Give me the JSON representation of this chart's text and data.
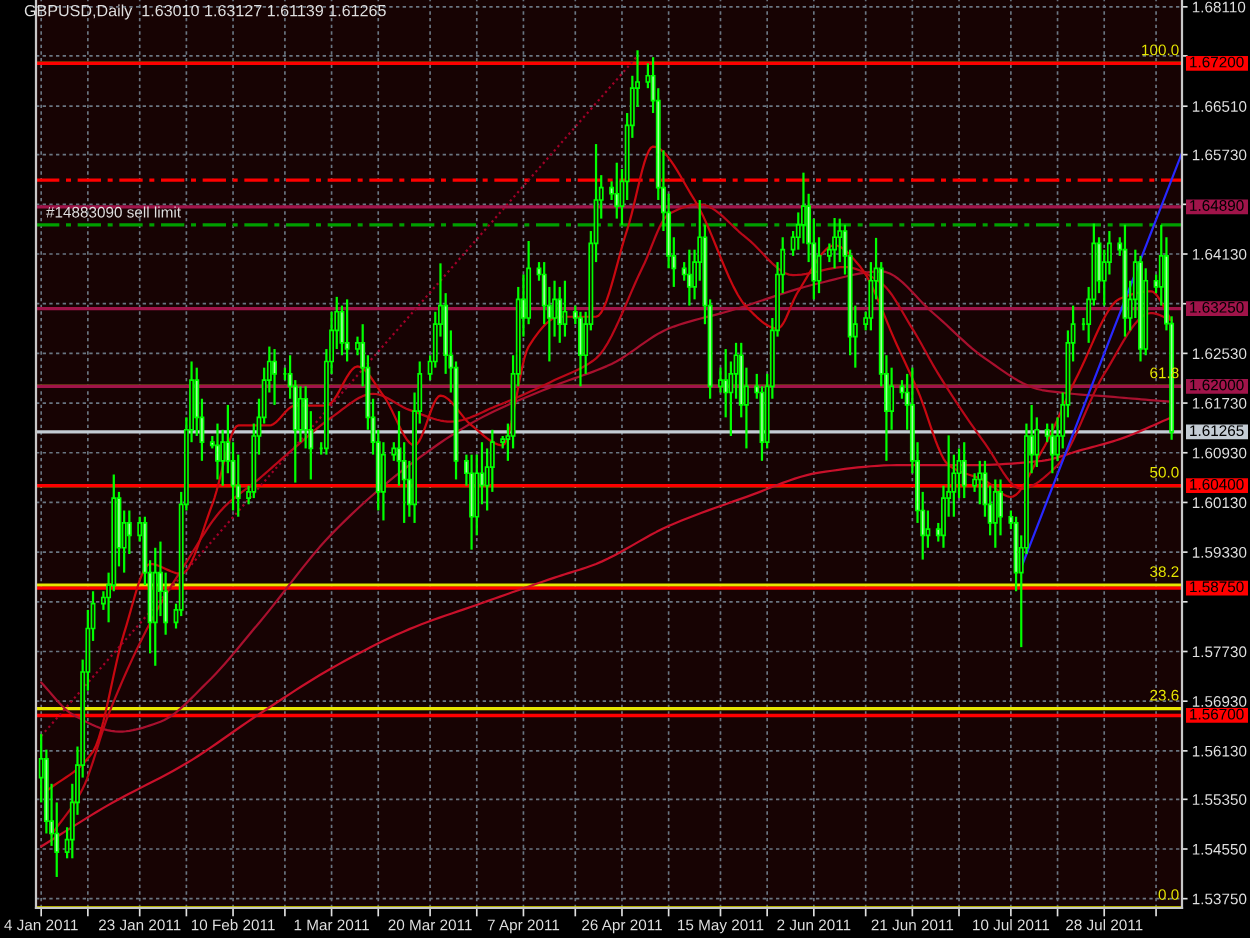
{
  "chart_data": {
    "type": "candlestick",
    "title": "GBPUSD,Daily  1.63010 1.63127 1.61139 1.61265",
    "color": "#00ff00",
    "x": [
      "2011-01-04",
      "2011-01-05",
      "2011-01-06",
      "2011-01-07",
      "2011-01-09",
      "2011-01-10",
      "2011-01-11",
      "2011-01-12",
      "2011-01-13",
      "2011-01-14",
      "2011-01-16",
      "2011-01-17",
      "2011-01-18",
      "2011-01-19",
      "2011-01-20",
      "2011-01-21",
      "2011-01-23",
      "2011-01-24",
      "2011-01-25",
      "2011-01-26",
      "2011-01-27",
      "2011-01-28",
      "2011-01-30",
      "2011-01-31",
      "2011-02-01",
      "2011-02-02",
      "2011-02-03",
      "2011-02-04",
      "2011-02-06",
      "2011-02-07",
      "2011-02-08",
      "2011-02-09",
      "2011-02-10",
      "2011-02-11",
      "2011-02-13",
      "2011-02-14",
      "2011-02-15",
      "2011-02-16",
      "2011-02-17",
      "2011-02-18",
      "2011-02-20",
      "2011-02-21",
      "2011-02-22",
      "2011-02-23",
      "2011-02-24",
      "2011-02-25",
      "2011-02-27",
      "2011-02-28",
      "2011-03-01",
      "2011-03-02",
      "2011-03-03",
      "2011-03-04",
      "2011-03-06",
      "2011-03-07",
      "2011-03-08",
      "2011-03-09",
      "2011-03-10",
      "2011-03-11",
      "2011-03-13",
      "2011-03-14",
      "2011-03-15",
      "2011-03-16",
      "2011-03-17",
      "2011-03-18",
      "2011-03-20",
      "2011-03-21",
      "2011-03-22",
      "2011-03-23",
      "2011-03-24",
      "2011-03-25",
      "2011-03-27",
      "2011-03-28",
      "2011-03-29",
      "2011-03-30",
      "2011-03-31",
      "2011-04-01",
      "2011-04-03",
      "2011-04-04",
      "2011-04-05",
      "2011-04-06",
      "2011-04-07",
      "2011-04-08",
      "2011-04-10",
      "2011-04-11",
      "2011-04-12",
      "2011-04-13",
      "2011-04-14",
      "2011-04-15",
      "2011-04-17",
      "2011-04-18",
      "2011-04-19",
      "2011-04-20",
      "2011-04-21",
      "2011-04-22",
      "2011-04-24",
      "2011-04-25",
      "2011-04-26",
      "2011-04-27",
      "2011-04-28",
      "2011-04-29",
      "2011-05-01",
      "2011-05-02",
      "2011-05-03",
      "2011-05-04",
      "2011-05-05",
      "2011-05-06",
      "2011-05-08",
      "2011-05-09",
      "2011-05-10",
      "2011-05-11",
      "2011-05-12",
      "2011-05-13",
      "2011-05-15",
      "2011-05-16",
      "2011-05-17",
      "2011-05-18",
      "2011-05-19",
      "2011-05-20",
      "2011-05-22",
      "2011-05-23",
      "2011-05-24",
      "2011-05-25",
      "2011-05-26",
      "2011-05-27",
      "2011-05-29",
      "2011-05-30",
      "2011-05-31",
      "2011-06-01",
      "2011-06-02",
      "2011-06-03",
      "2011-06-05",
      "2011-06-06",
      "2011-06-07",
      "2011-06-08",
      "2011-06-09",
      "2011-06-10",
      "2011-06-12",
      "2011-06-13",
      "2011-06-14",
      "2011-06-15",
      "2011-06-16",
      "2011-06-17",
      "2011-06-19",
      "2011-06-20",
      "2011-06-21",
      "2011-06-22",
      "2011-06-23",
      "2011-06-24",
      "2011-06-26",
      "2011-06-27",
      "2011-06-28",
      "2011-06-29",
      "2011-06-30",
      "2011-07-01",
      "2011-07-03",
      "2011-07-04",
      "2011-07-05",
      "2011-07-06",
      "2011-07-07",
      "2011-07-08",
      "2011-07-10",
      "2011-07-11",
      "2011-07-12",
      "2011-07-13",
      "2011-07-14",
      "2011-07-15",
      "2011-07-17",
      "2011-07-18",
      "2011-07-19",
      "2011-07-20",
      "2011-07-21",
      "2011-07-22",
      "2011-07-24",
      "2011-07-25",
      "2011-07-26",
      "2011-07-27",
      "2011-07-28",
      "2011-07-29",
      "2011-07-31",
      "2011-08-01",
      "2011-08-02",
      "2011-08-03",
      "2011-08-04",
      "2011-08-05",
      "2011-08-07",
      "2011-08-08",
      "2011-08-09",
      "2011-08-10"
    ],
    "ohlc": [
      [
        1.557,
        1.564,
        1.553,
        1.56
      ],
      [
        1.56,
        1.5615,
        1.548,
        1.55
      ],
      [
        1.55,
        1.556,
        1.546,
        1.548
      ],
      [
        1.548,
        1.553,
        1.541,
        1.545
      ],
      [
        1.545,
        1.549,
        1.544,
        1.547
      ],
      [
        1.547,
        1.556,
        1.544,
        1.553
      ],
      [
        1.553,
        1.562,
        1.551,
        1.559
      ],
      [
        1.559,
        1.576,
        1.557,
        1.574
      ],
      [
        1.574,
        1.584,
        1.571,
        1.581
      ],
      [
        1.581,
        1.587,
        1.579,
        1.585
      ],
      [
        1.585,
        1.587,
        1.584,
        1.586
      ],
      [
        1.586,
        1.59,
        1.582,
        1.588
      ],
      [
        1.588,
        1.6058,
        1.587,
        1.602
      ],
      [
        1.602,
        1.603,
        1.591,
        1.594
      ],
      [
        1.594,
        1.6,
        1.59,
        1.598
      ],
      [
        1.598,
        1.6,
        1.593,
        1.596
      ],
      [
        1.596,
        1.599,
        1.595,
        1.598
      ],
      [
        1.598,
        1.599,
        1.588,
        1.59
      ],
      [
        1.59,
        1.592,
        1.577,
        1.582
      ],
      [
        1.582,
        1.594,
        1.575,
        1.59
      ],
      [
        1.59,
        1.595,
        1.583,
        1.587
      ],
      [
        1.587,
        1.59,
        1.58,
        1.582
      ],
      [
        1.582,
        1.585,
        1.581,
        1.584
      ],
      [
        1.584,
        1.603,
        1.583,
        1.601
      ],
      [
        1.601,
        1.615,
        1.6,
        1.613
      ],
      [
        1.613,
        1.624,
        1.611,
        1.621
      ],
      [
        1.621,
        1.623,
        1.612,
        1.615
      ],
      [
        1.615,
        1.618,
        1.608,
        1.611
      ],
      [
        1.611,
        1.612,
        1.61,
        1.6105
      ],
      [
        1.6105,
        1.614,
        1.605,
        1.608
      ],
      [
        1.608,
        1.613,
        1.604,
        1.611
      ],
      [
        1.611,
        1.617,
        1.606,
        1.608
      ],
      [
        1.608,
        1.611,
        1.6,
        1.604
      ],
      [
        1.604,
        1.609,
        1.599,
        1.602
      ],
      [
        1.602,
        1.604,
        1.601,
        1.603
      ],
      [
        1.603,
        1.614,
        1.602,
        1.612
      ],
      [
        1.612,
        1.618,
        1.609,
        1.615
      ],
      [
        1.615,
        1.623,
        1.614,
        1.621
      ],
      [
        1.621,
        1.6264,
        1.619,
        1.624
      ],
      [
        1.624,
        1.626,
        1.617,
        1.622
      ],
      [
        1.622,
        1.623,
        1.621,
        1.622
      ],
      [
        1.622,
        1.625,
        1.618,
        1.62
      ],
      [
        1.62,
        1.621,
        1.6045,
        1.613
      ],
      [
        1.613,
        1.62,
        1.611,
        1.618
      ],
      [
        1.618,
        1.62,
        1.61,
        1.613
      ],
      [
        1.613,
        1.616,
        1.605,
        1.61
      ],
      [
        1.61,
        1.611,
        1.609,
        1.61
      ],
      [
        1.61,
        1.626,
        1.609,
        1.624
      ],
      [
        1.624,
        1.632,
        1.622,
        1.629
      ],
      [
        1.629,
        1.6344,
        1.626,
        1.632
      ],
      [
        1.632,
        1.633,
        1.625,
        1.627
      ],
      [
        1.627,
        1.634,
        1.624,
        1.626
      ],
      [
        1.626,
        1.628,
        1.625,
        1.627
      ],
      [
        1.627,
        1.63,
        1.62,
        1.623
      ],
      [
        1.623,
        1.625,
        1.613,
        1.615
      ],
      [
        1.615,
        1.618,
        1.609,
        1.611
      ],
      [
        1.611,
        1.613,
        1.6,
        1.603
      ],
      [
        1.603,
        1.611,
        1.5984,
        1.609
      ],
      [
        1.609,
        1.611,
        1.608,
        1.61
      ],
      [
        1.61,
        1.616,
        1.604,
        1.608
      ],
      [
        1.608,
        1.611,
        1.598,
        1.605
      ],
      [
        1.605,
        1.608,
        1.599,
        1.601
      ],
      [
        1.601,
        1.619,
        1.598,
        1.616
      ],
      [
        1.616,
        1.624,
        1.614,
        1.622
      ],
      [
        1.622,
        1.625,
        1.621,
        1.624
      ],
      [
        1.624,
        1.632,
        1.623,
        1.63
      ],
      [
        1.63,
        1.6398,
        1.628,
        1.633
      ],
      [
        1.633,
        1.635,
        1.622,
        1.625
      ],
      [
        1.625,
        1.629,
        1.619,
        1.623
      ],
      [
        1.623,
        1.624,
        1.605,
        1.608
      ],
      [
        1.608,
        1.609,
        1.604,
        1.606
      ],
      [
        1.606,
        1.609,
        1.5937,
        1.599
      ],
      [
        1.599,
        1.609,
        1.596,
        1.606
      ],
      [
        1.606,
        1.611,
        1.601,
        1.604
      ],
      [
        1.604,
        1.61,
        1.6,
        1.607
      ],
      [
        1.607,
        1.613,
        1.603,
        1.611
      ],
      [
        1.611,
        1.612,
        1.61,
        1.6115
      ],
      [
        1.6115,
        1.614,
        1.608,
        1.612
      ],
      [
        1.612,
        1.625,
        1.61,
        1.622
      ],
      [
        1.622,
        1.636,
        1.62,
        1.634
      ],
      [
        1.634,
        1.638,
        1.628,
        1.631
      ],
      [
        1.631,
        1.6434,
        1.63,
        1.639
      ],
      [
        1.639,
        1.64,
        1.637,
        1.638
      ],
      [
        1.638,
        1.64,
        1.63,
        1.633
      ],
      [
        1.633,
        1.636,
        1.624,
        1.631
      ],
      [
        1.631,
        1.637,
        1.628,
        1.634
      ],
      [
        1.634,
        1.636,
        1.627,
        1.63
      ],
      [
        1.63,
        1.637,
        1.628,
        1.632
      ],
      [
        1.632,
        1.633,
        1.63,
        1.631
      ],
      [
        1.631,
        1.632,
        1.62,
        1.625
      ],
      [
        1.625,
        1.632,
        1.622,
        1.63
      ],
      [
        1.63,
        1.645,
        1.629,
        1.643
      ],
      [
        1.643,
        1.659,
        1.64,
        1.65
      ],
      [
        1.65,
        1.654,
        1.647,
        1.652
      ],
      [
        1.652,
        1.653,
        1.65,
        1.651
      ],
      [
        1.651,
        1.656,
        1.647,
        1.649
      ],
      [
        1.649,
        1.655,
        1.646,
        1.653
      ],
      [
        1.653,
        1.664,
        1.65,
        1.662
      ],
      [
        1.662,
        1.67,
        1.66,
        1.668
      ],
      [
        1.668,
        1.6741,
        1.665,
        1.669
      ],
      [
        1.669,
        1.672,
        1.668,
        1.67
      ],
      [
        1.67,
        1.673,
        1.664,
        1.666
      ],
      [
        1.666,
        1.668,
        1.65,
        1.652
      ],
      [
        1.652,
        1.658,
        1.645,
        1.648
      ],
      [
        1.648,
        1.651,
        1.639,
        1.641
      ],
      [
        1.641,
        1.644,
        1.636,
        1.639
      ],
      [
        1.639,
        1.64,
        1.637,
        1.638
      ],
      [
        1.638,
        1.642,
        1.633,
        1.636
      ],
      [
        1.636,
        1.642,
        1.634,
        1.64
      ],
      [
        1.64,
        1.65,
        1.637,
        1.644
      ],
      [
        1.644,
        1.646,
        1.63,
        1.633
      ],
      [
        1.633,
        1.634,
        1.618,
        1.62
      ],
      [
        1.62,
        1.623,
        1.619,
        1.621
      ],
      [
        1.621,
        1.626,
        1.615,
        1.619
      ],
      [
        1.619,
        1.624,
        1.612,
        1.622
      ],
      [
        1.622,
        1.627,
        1.618,
        1.625
      ],
      [
        1.625,
        1.627,
        1.615,
        1.617
      ],
      [
        1.617,
        1.623,
        1.61,
        1.62
      ],
      [
        1.62,
        1.622,
        1.618,
        1.619
      ],
      [
        1.619,
        1.62,
        1.608,
        1.611
      ],
      [
        1.611,
        1.622,
        1.61,
        1.62
      ],
      [
        1.62,
        1.631,
        1.618,
        1.629
      ],
      [
        1.629,
        1.64,
        1.628,
        1.638
      ],
      [
        1.638,
        1.644,
        1.635,
        1.642
      ],
      [
        1.642,
        1.645,
        1.641,
        1.644
      ],
      [
        1.644,
        1.648,
        1.642,
        1.646
      ],
      [
        1.646,
        1.6544,
        1.643,
        1.649
      ],
      [
        1.649,
        1.651,
        1.64,
        1.643
      ],
      [
        1.643,
        1.647,
        1.634,
        1.637
      ],
      [
        1.637,
        1.644,
        1.635,
        1.641
      ],
      [
        1.641,
        1.643,
        1.64,
        1.642
      ],
      [
        1.642,
        1.6471,
        1.639,
        1.644
      ],
      [
        1.644,
        1.647,
        1.64,
        1.645
      ],
      [
        1.645,
        1.646,
        1.638,
        1.641
      ],
      [
        1.641,
        1.642,
        1.625,
        1.628
      ],
      [
        1.628,
        1.633,
        1.623,
        1.63
      ],
      [
        1.63,
        1.632,
        1.629,
        1.631
      ],
      [
        1.631,
        1.64,
        1.629,
        1.637
      ],
      [
        1.637,
        1.6439,
        1.634,
        1.639
      ],
      [
        1.639,
        1.64,
        1.62,
        1.622
      ],
      [
        1.622,
        1.625,
        1.608,
        1.616
      ],
      [
        1.616,
        1.623,
        1.613,
        1.62
      ],
      [
        1.62,
        1.621,
        1.618,
        1.619
      ],
      [
        1.619,
        1.622,
        1.613,
        1.617
      ],
      [
        1.617,
        1.623,
        1.606,
        1.608
      ],
      [
        1.608,
        1.611,
        1.598,
        1.6
      ],
      [
        1.6,
        1.603,
        1.5921,
        1.596
      ],
      [
        1.596,
        1.6,
        1.594,
        1.597
      ],
      [
        1.597,
        1.598,
        1.595,
        1.596
      ],
      [
        1.596,
        1.604,
        1.594,
        1.602
      ],
      [
        1.602,
        1.6121,
        1.599,
        1.603
      ],
      [
        1.603,
        1.609,
        1.599,
        1.606
      ],
      [
        1.606,
        1.61,
        1.602,
        1.608
      ],
      [
        1.608,
        1.611,
        1.602,
        1.604
      ],
      [
        1.604,
        1.606,
        1.603,
        1.605
      ],
      [
        1.605,
        1.608,
        1.601,
        1.606
      ],
      [
        1.606,
        1.608,
        1.599,
        1.601
      ],
      [
        1.601,
        1.604,
        1.596,
        1.598
      ],
      [
        1.598,
        1.605,
        1.594,
        1.603
      ],
      [
        1.603,
        1.605,
        1.596,
        1.599
      ],
      [
        1.599,
        1.6,
        1.597,
        1.598
      ],
      [
        1.598,
        1.599,
        1.587,
        1.59
      ],
      [
        1.59,
        1.596,
        1.578,
        1.594
      ],
      [
        1.594,
        1.614,
        1.593,
        1.612
      ],
      [
        1.612,
        1.617,
        1.606,
        1.609
      ],
      [
        1.609,
        1.615,
        1.607,
        1.613
      ],
      [
        1.613,
        1.614,
        1.611,
        1.612
      ],
      [
        1.612,
        1.614,
        1.606,
        1.609
      ],
      [
        1.609,
        1.615,
        1.608,
        1.612
      ],
      [
        1.612,
        1.619,
        1.61,
        1.617
      ],
      [
        1.617,
        1.629,
        1.615,
        1.627
      ],
      [
        1.627,
        1.633,
        1.624,
        1.63
      ],
      [
        1.63,
        1.631,
        1.629,
        1.63
      ],
      [
        1.63,
        1.636,
        1.627,
        1.634
      ],
      [
        1.634,
        1.6462,
        1.633,
        1.643
      ],
      [
        1.643,
        1.644,
        1.635,
        1.637
      ],
      [
        1.637,
        1.642,
        1.633,
        1.64
      ],
      [
        1.64,
        1.645,
        1.638,
        1.643
      ],
      [
        1.643,
        1.644,
        1.641,
        1.642
      ],
      [
        1.642,
        1.646,
        1.628,
        1.631
      ],
      [
        1.631,
        1.637,
        1.629,
        1.634
      ],
      [
        1.634,
        1.642,
        1.631,
        1.64
      ],
      [
        1.64,
        1.641,
        1.624,
        1.626
      ],
      [
        1.626,
        1.639,
        1.625,
        1.637
      ],
      [
        1.637,
        1.638,
        1.635,
        1.636
      ],
      [
        1.636,
        1.646,
        1.633,
        1.641
      ],
      [
        1.641,
        1.644,
        1.629,
        1.6301
      ],
      [
        1.6301,
        1.63127,
        1.61139,
        1.61265
      ]
    ],
    "series": [
      {
        "type": "line",
        "color": "#c8102a",
        "x": [
          "2011-01-04",
          "2011-01-17",
          "2011-02-01",
          "2011-02-15",
          "2011-03-01",
          "2011-03-16",
          "2011-03-30",
          "2011-04-13",
          "2011-04-21",
          "2011-05-05",
          "2011-05-20",
          "2011-06-03",
          "2011-06-18",
          "2011-07-02",
          "2011-07-16",
          "2011-07-23",
          "2011-07-31",
          "2011-08-10"
        ],
        "values": [
          1.5459,
          1.5526,
          1.5593,
          1.5672,
          1.5746,
          1.5809,
          1.5851,
          1.5892,
          1.5914,
          1.5975,
          1.6022,
          1.6061,
          1.6073,
          1.6073,
          1.608,
          1.6096,
          1.6115,
          1.615
        ]
      },
      {
        "type": "line",
        "color": "#a8102e",
        "x": [
          "2011-01-04",
          "2011-01-10",
          "2011-01-19",
          "2011-01-27",
          "2011-02-05",
          "2011-02-15",
          "2011-03-01",
          "2011-03-16",
          "2011-03-30",
          "2011-04-13",
          "2011-04-24",
          "2011-05-05",
          "2011-05-17",
          "2011-06-03",
          "2011-06-15",
          "2011-06-25",
          "2011-07-05",
          "2011-07-16",
          "2011-07-31",
          "2011-08-10"
        ],
        "values": [
          1.5723,
          1.5672,
          1.5644,
          1.566,
          1.5723,
          1.5819,
          1.5962,
          1.6073,
          1.615,
          1.6201,
          1.6236,
          1.6293,
          1.6322,
          1.6366,
          1.6385,
          1.6318,
          1.6245,
          1.6194,
          1.6182,
          1.6175
        ]
      },
      {
        "type": "line",
        "color": "#b80818",
        "x": [
          "2011-01-06",
          "2011-01-12",
          "2011-01-17",
          "2011-01-25",
          "2011-02-01",
          "2011-02-08",
          "2011-02-15",
          "2011-02-22",
          "2011-03-01",
          "2011-03-09",
          "2011-03-16",
          "2011-03-24",
          "2011-04-02",
          "2011-04-13",
          "2011-04-21",
          "2011-04-30",
          "2011-05-05",
          "2011-05-11",
          "2011-05-20",
          "2011-05-29",
          "2011-06-08",
          "2011-06-15",
          "2011-06-21",
          "2011-06-26",
          "2011-07-05",
          "2011-07-12",
          "2011-07-19",
          "2011-07-28",
          "2011-08-06",
          "2011-08-10"
        ],
        "values": [
          1.5478,
          1.5552,
          1.5672,
          1.5819,
          1.5917,
          1.6003,
          1.6051,
          1.6102,
          1.615,
          1.6188,
          1.6162,
          1.6143,
          1.6169,
          1.621,
          1.6245,
          1.6392,
          1.6477,
          1.6493,
          1.6439,
          1.6379,
          1.6392,
          1.6366,
          1.6293,
          1.622,
          1.6108,
          1.6035,
          1.6073,
          1.622,
          1.6318,
          1.6306
        ]
      },
      {
        "type": "line",
        "color": "#c80810",
        "x": [
          "2011-01-05",
          "2011-01-14",
          "2011-01-20",
          "2011-01-25",
          "2011-01-31",
          "2011-02-06",
          "2011-02-11",
          "2011-02-17",
          "2011-02-22",
          "2011-02-28",
          "2011-03-06",
          "2011-03-11",
          "2011-03-17",
          "2011-03-22",
          "2011-03-28",
          "2011-04-03",
          "2011-04-08",
          "2011-04-14",
          "2011-04-21",
          "2011-04-27",
          "2011-05-02",
          "2011-05-10",
          "2011-05-20",
          "2011-05-26",
          "2011-05-30",
          "2011-06-06",
          "2011-06-11",
          "2011-06-18",
          "2011-06-22",
          "2011-06-28",
          "2011-07-05",
          "2011-07-10",
          "2011-07-16",
          "2011-07-23",
          "2011-07-31",
          "2011-08-06",
          "2011-08-10"
        ],
        "values": [
          1.5548,
          1.5612,
          1.5803,
          1.5914,
          1.5898,
          1.601,
          1.6137,
          1.6137,
          1.6169,
          1.6169,
          1.6232,
          1.6185,
          1.6105,
          1.6185,
          1.6137,
          1.6105,
          1.6264,
          1.6312,
          1.6312,
          1.6452,
          1.6586,
          1.65,
          1.6328,
          1.6293,
          1.6353,
          1.6427,
          1.6392,
          1.6267,
          1.6194,
          1.6073,
          1.6048,
          1.6022,
          1.6096,
          1.622,
          1.6341,
          1.6353,
          1.6306
        ]
      },
      {
        "type": "line",
        "color": "#a00028",
        "line_style": "dotted",
        "x": [
          "2011-01-04",
          "2011-04-29"
        ],
        "values": [
          1.5637,
          1.6732
        ]
      },
      {
        "type": "line",
        "color": "#2828ff",
        "x": [
          "2011-07-12",
          "2011-08-12"
        ],
        "values": [
          1.5908,
          1.6576
        ]
      }
    ],
    "xlim": [
      "2011-01-03",
      "2011-08-12"
    ],
    "xticks": [
      {
        "value": "2011-01-04",
        "label": "4 Jan 2011"
      },
      {
        "value": "2011-01-13",
        "label": null
      },
      {
        "value": "2011-01-23",
        "label": "23 Jan 2011"
      },
      {
        "value": "2011-02-01",
        "label": null
      },
      {
        "value": "2011-02-10",
        "label": "10 Feb 2011"
      },
      {
        "value": "2011-02-20",
        "label": null
      },
      {
        "value": "2011-03-01",
        "label": "1 Mar 2011"
      },
      {
        "value": "2011-03-10",
        "label": null
      },
      {
        "value": "2011-03-20",
        "label": "20 Mar 2011"
      },
      {
        "value": "2011-03-29",
        "label": null
      },
      {
        "value": "2011-04-07",
        "label": "7 Apr 2011"
      },
      {
        "value": "2011-04-17",
        "label": null
      },
      {
        "value": "2011-04-26",
        "label": "26 Apr 2011"
      },
      {
        "value": "2011-05-05",
        "label": null
      },
      {
        "value": "2011-05-15",
        "label": "15 May 2011"
      },
      {
        "value": "2011-05-24",
        "label": null
      },
      {
        "value": "2011-06-02",
        "label": "2 Jun 2011"
      },
      {
        "value": "2011-06-12",
        "label": null
      },
      {
        "value": "2011-06-21",
        "label": "21 Jun 2011"
      },
      {
        "value": "2011-06-30",
        "label": null
      },
      {
        "value": "2011-07-10",
        "label": "10 Jul 2011"
      },
      {
        "value": "2011-07-19",
        "label": null
      },
      {
        "value": "2011-07-28",
        "label": "28 Jul 2011"
      },
      {
        "value": "2011-08-07",
        "label": null
      }
    ],
    "ylim": [
      1.536,
      1.6822
    ],
    "yticks": [
      {
        "value": 1.6811,
        "label": "1.68110"
      },
      {
        "value": 1.6732,
        "label": null
      },
      {
        "value": 1.6651,
        "label": "1.66510"
      },
      {
        "value": 1.6573,
        "label": "1.65730"
      },
      {
        "value": 1.6493,
        "label": null
      },
      {
        "value": 1.6413,
        "label": "1.64130"
      },
      {
        "value": 1.6333,
        "label": null
      },
      {
        "value": 1.6253,
        "label": "1.62530"
      },
      {
        "value": 1.6173,
        "label": "1.61730"
      },
      {
        "value": 1.6093,
        "label": "1.60930"
      },
      {
        "value": 1.6013,
        "label": "1.60130"
      },
      {
        "value": 1.5933,
        "label": "1.59330"
      },
      {
        "value": 1.5853,
        "label": null
      },
      {
        "value": 1.5773,
        "label": "1.57730"
      },
      {
        "value": 1.5693,
        "label": "1.56930"
      },
      {
        "value": 1.5613,
        "label": "1.56130"
      },
      {
        "value": 1.5535,
        "label": "1.55350"
      },
      {
        "value": 1.5455,
        "label": "1.54550"
      },
      {
        "value": 1.5375,
        "label": "1.53750"
      }
    ],
    "grid": true,
    "ref_lines": [
      {
        "axis": "y",
        "value": 1.672,
        "color": "#e6e600"
      },
      {
        "axis": "y",
        "value": 1.62,
        "color": "#e6e600"
      },
      {
        "axis": "y",
        "value": 1.604,
        "color": "#e6e600"
      },
      {
        "axis": "y",
        "value": 1.588,
        "color": "#e6e600"
      },
      {
        "axis": "y",
        "value": 1.5681,
        "color": "#e6e600"
      },
      {
        "axis": "y",
        "value": 1.536,
        "color": "#e6e600"
      },
      {
        "axis": "y",
        "value": 1.6532,
        "color": "#ff0000",
        "line_style": "dashed"
      },
      {
        "axis": "y",
        "value": 1.646,
        "label": "#14883090 sell limit",
        "color": "#00a000",
        "line_style": "dashed"
      },
      {
        "axis": "y",
        "value": 1.61265,
        "label": "1.61265",
        "color": "#c4ccd4"
      },
      {
        "axis": "y",
        "value": 1.672,
        "label": "1.67200",
        "color": "#ff0000"
      },
      {
        "axis": "y",
        "value": 1.6489,
        "label": "1.64890",
        "color": "#a0144a"
      },
      {
        "axis": "y",
        "value": 1.6325,
        "label": "1.63250",
        "color": "#a0144a"
      },
      {
        "axis": "y",
        "value": 1.62,
        "label": "1.62000",
        "color": "#a0144a"
      },
      {
        "axis": "y",
        "value": 1.604,
        "label": "1.60400",
        "color": "#ff0000"
      },
      {
        "axis": "y",
        "value": 1.5875,
        "label": "1.58750",
        "color": "#ff0000"
      },
      {
        "axis": "y",
        "value": 1.567,
        "label": "1.56700",
        "color": "#ff0000"
      }
    ],
    "annotations": [
      {
        "text": "100.0",
        "x": "2011-08-12",
        "y": 1.672
      },
      {
        "text": "61.8",
        "x": "2011-08-12",
        "y": 1.62
      },
      {
        "text": "50.0",
        "x": "2011-08-12",
        "y": 1.604
      },
      {
        "text": "38.2",
        "x": "2011-08-12",
        "y": 1.588
      },
      {
        "text": "23.6",
        "x": "2011-08-12",
        "y": 1.5681
      },
      {
        "text": "0.0",
        "x": "2011-08-12",
        "y": 1.536
      }
    ]
  }
}
